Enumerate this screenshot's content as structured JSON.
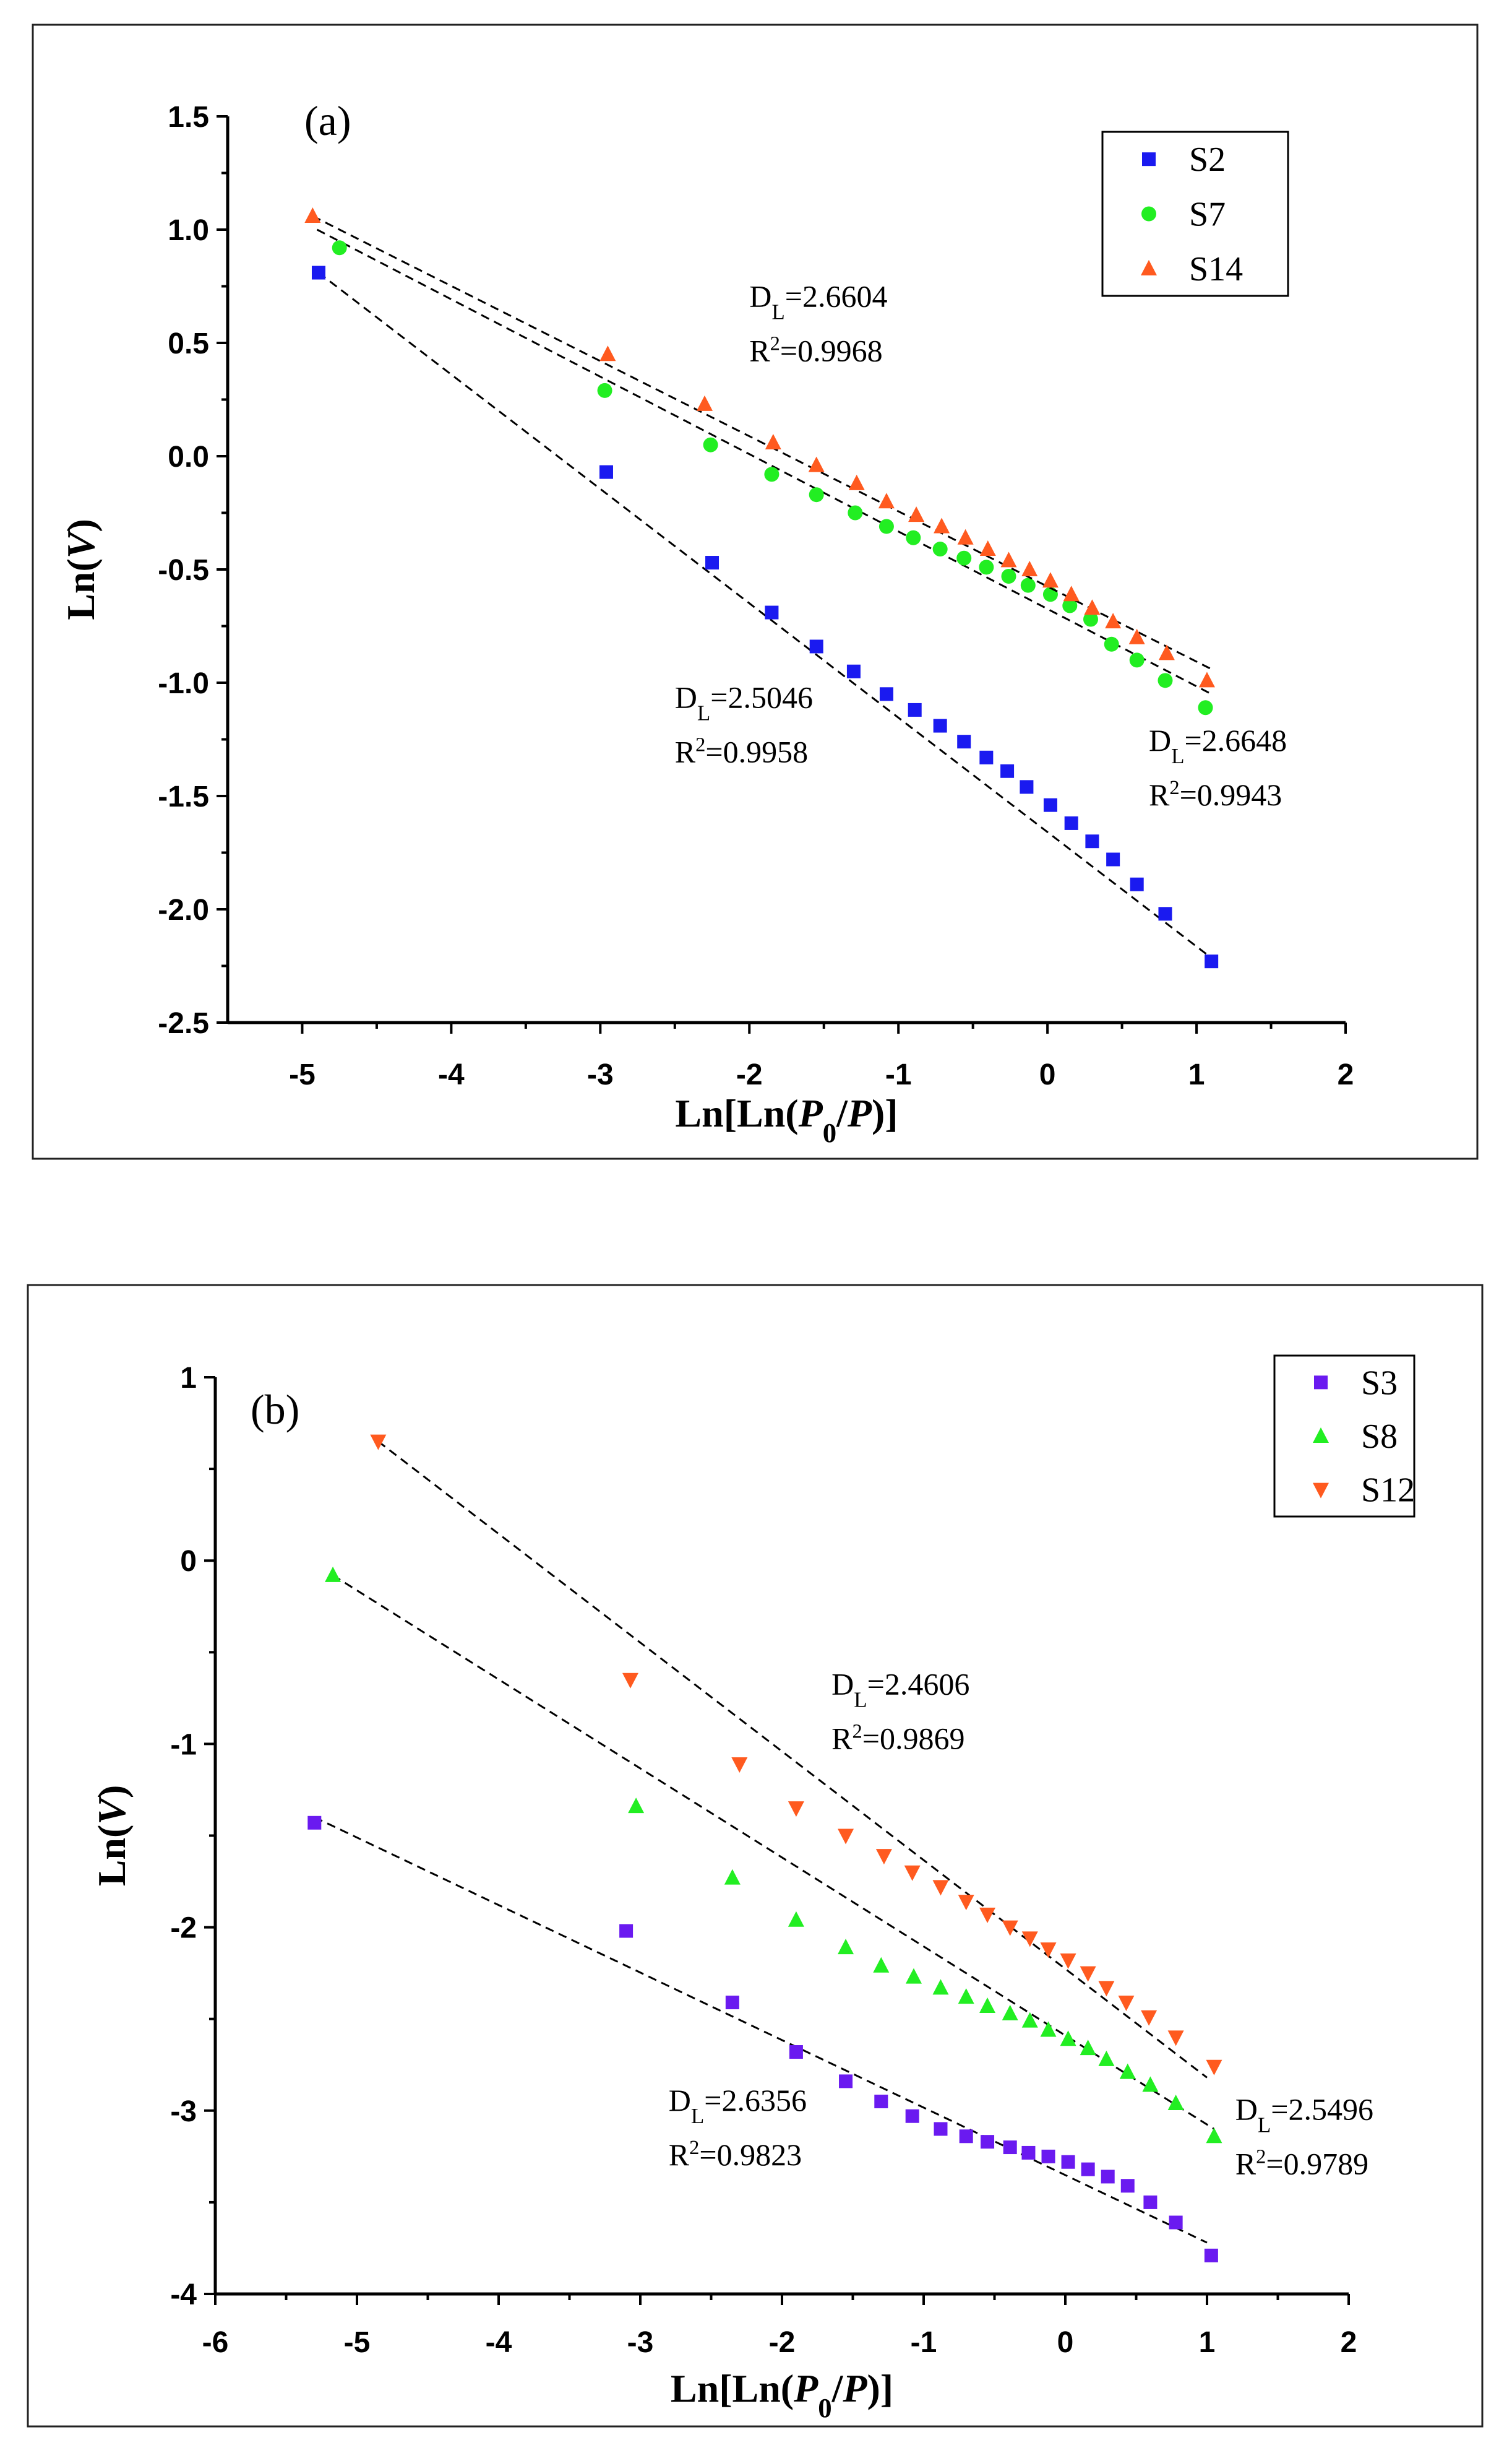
{
  "chart_data": [
    {
      "type": "scatter",
      "panel_label": "(a)",
      "xlabel_parts": [
        "Ln[Ln(",
        "P",
        "0",
        "/",
        "P",
        ")]"
      ],
      "ylabel_parts": [
        "Ln(",
        "V",
        ")"
      ],
      "xlim": [
        -5.5,
        2
      ],
      "ylim": [
        -2.5,
        1.5
      ],
      "xticks": [
        -5,
        -4,
        -3,
        -2,
        -1,
        0,
        1,
        2
      ],
      "yticks": [
        1.5,
        1.0,
        0.5,
        0.0,
        -0.5,
        -1.0,
        -1.5,
        -2.0,
        -2.5
      ],
      "ytick_labels": [
        "1.5",
        "1.0",
        "0.5",
        "0.0",
        "-0.5",
        "-1.0",
        "-1.5",
        "-2.0",
        "-2.5"
      ],
      "xtick_labels": [
        "-5",
        "-4",
        "-3",
        "-2",
        "-1",
        "0",
        "1",
        "2"
      ],
      "legend": {
        "position": "top-right",
        "entries": [
          "S2",
          "S7",
          "S14"
        ]
      },
      "series": [
        {
          "name": "S2",
          "marker": "square",
          "color": "#1a1af0",
          "x": [
            -4.89,
            -2.96,
            -2.25,
            -1.85,
            -1.55,
            -1.3,
            -1.08,
            -0.89,
            -0.72,
            -0.56,
            -0.41,
            -0.27,
            -0.14,
            0.02,
            0.16,
            0.3,
            0.44,
            0.6,
            0.79,
            1.1
          ],
          "y": [
            0.81,
            -0.07,
            -0.47,
            -0.69,
            -0.84,
            -0.95,
            -1.05,
            -1.12,
            -1.19,
            -1.26,
            -1.33,
            -1.39,
            -1.46,
            -1.54,
            -1.62,
            -1.7,
            -1.78,
            -1.89,
            -2.02,
            -2.23
          ],
          "fit": {
            "x": [
              -4.89,
              1.15
            ],
            "y": [
              0.81,
              -2.24
            ]
          }
        },
        {
          "name": "S7",
          "marker": "circle",
          "color": "#22ee22",
          "x": [
            -4.75,
            -2.97,
            -2.26,
            -1.85,
            -1.55,
            -1.29,
            -1.08,
            -0.9,
            -0.72,
            -0.56,
            -0.41,
            -0.26,
            -0.13,
            0.02,
            0.15,
            0.29,
            0.43,
            0.6,
            0.79,
            1.06
          ],
          "y": [
            0.92,
            0.29,
            0.05,
            -0.08,
            -0.17,
            -0.25,
            -0.31,
            -0.36,
            -0.41,
            -0.45,
            -0.49,
            -0.53,
            -0.57,
            -0.61,
            -0.66,
            -0.72,
            -0.83,
            -0.9,
            -0.99,
            -1.11
          ],
          "fit": {
            "x": [
              -4.9,
              1.1
            ],
            "y": [
              1.0,
              -1.05
            ]
          }
        },
        {
          "name": "S14",
          "marker": "triangle-up",
          "color": "#ff5a1f",
          "x": [
            -4.93,
            -2.95,
            -2.3,
            -1.84,
            -1.55,
            -1.28,
            -1.08,
            -0.88,
            -0.71,
            -0.55,
            -0.4,
            -0.26,
            -0.12,
            0.02,
            0.16,
            0.3,
            0.44,
            0.6,
            0.8,
            1.07
          ],
          "y": [
            1.06,
            0.45,
            0.23,
            0.06,
            -0.04,
            -0.12,
            -0.2,
            -0.26,
            -0.31,
            -0.36,
            -0.41,
            -0.46,
            -0.5,
            -0.55,
            -0.61,
            -0.67,
            -0.73,
            -0.8,
            -0.87,
            -0.99
          ],
          "fit": {
            "x": [
              -4.93,
              1.1
            ],
            "y": [
              1.06,
              -0.94
            ]
          }
        }
      ],
      "annotations": [
        {
          "label": "D",
          "sub": "L",
          "value": "=2.6604",
          "r2": "=0.9968",
          "x": -2.0,
          "y": 0.66
        },
        {
          "label": "D",
          "sub": "L",
          "value": "=2.5046",
          "r2": "=0.9958",
          "x": -2.5,
          "y": -1.11
        },
        {
          "label": "D",
          "sub": "L",
          "value": "=2.6648",
          "r2": "=0.9943",
          "x": 0.68,
          "y": -1.3
        }
      ]
    },
    {
      "type": "scatter",
      "panel_label": "(b)",
      "xlabel_parts": [
        "Ln[Ln(",
        "P",
        "0",
        "/",
        "P",
        ")]"
      ],
      "ylabel_parts": [
        "Ln(",
        "V",
        ")"
      ],
      "xlim": [
        -6,
        2
      ],
      "ylim": [
        -4,
        1
      ],
      "xticks": [
        -6,
        -5,
        -4,
        -3,
        -2,
        -1,
        0,
        1,
        2
      ],
      "yticks": [
        1,
        0,
        -1,
        -2,
        -3,
        -4
      ],
      "ytick_labels": [
        "1",
        "0",
        "-1",
        "-2",
        "-3",
        "-4"
      ],
      "xtick_labels": [
        "-6",
        "-5",
        "-4",
        "-3",
        "-2",
        "-1",
        "0",
        "1",
        "2"
      ],
      "legend": {
        "position": "top-right",
        "entries": [
          "S3",
          "S8",
          "S12"
        ]
      },
      "series": [
        {
          "name": "S3",
          "marker": "square",
          "color": "#6a1af0",
          "x": [
            -5.3,
            -3.1,
            -2.35,
            -1.9,
            -1.55,
            -1.3,
            -1.08,
            -0.88,
            -0.7,
            -0.55,
            -0.39,
            -0.26,
            -0.12,
            0.02,
            0.16,
            0.3,
            0.44,
            0.6,
            0.78,
            1.03
          ],
          "y": [
            -1.43,
            -2.02,
            -2.41,
            -2.68,
            -2.84,
            -2.95,
            -3.03,
            -3.1,
            -3.14,
            -3.17,
            -3.2,
            -3.23,
            -3.25,
            -3.28,
            -3.32,
            -3.36,
            -3.41,
            -3.5,
            -3.61,
            -3.79
          ],
          "fit": {
            "x": [
              -5.3,
              1.0
            ],
            "y": [
              -1.4,
              -3.72
            ]
          }
        },
        {
          "name": "S8",
          "marker": "triangle-up",
          "color": "#22ee22",
          "x": [
            -5.17,
            -3.03,
            -2.35,
            -1.9,
            -1.55,
            -1.3,
            -1.07,
            -0.88,
            -0.7,
            -0.55,
            -0.39,
            -0.25,
            -0.12,
            0.02,
            0.16,
            0.29,
            0.44,
            0.6,
            0.78,
            1.05
          ],
          "y": [
            -0.08,
            -1.34,
            -1.73,
            -1.96,
            -2.11,
            -2.21,
            -2.27,
            -2.33,
            -2.38,
            -2.43,
            -2.47,
            -2.51,
            -2.56,
            -2.61,
            -2.66,
            -2.72,
            -2.79,
            -2.86,
            -2.96,
            -3.14
          ],
          "fit": {
            "x": [
              -5.17,
              1.05
            ],
            "y": [
              -0.08,
              -3.1
            ]
          }
        },
        {
          "name": "S12",
          "marker": "triangle-down",
          "color": "#ff5a1f",
          "x": [
            -4.85,
            -3.07,
            -2.3,
            -1.9,
            -1.55,
            -1.28,
            -1.08,
            -0.88,
            -0.7,
            -0.55,
            -0.39,
            -0.25,
            -0.12,
            0.02,
            0.16,
            0.29,
            0.43,
            0.59,
            0.78,
            1.05
          ],
          "y": [
            0.65,
            -0.65,
            -1.11,
            -1.35,
            -1.5,
            -1.61,
            -1.7,
            -1.78,
            -1.86,
            -1.93,
            -2.0,
            -2.06,
            -2.12,
            -2.18,
            -2.25,
            -2.33,
            -2.41,
            -2.49,
            -2.6,
            -2.76
          ],
          "fit": {
            "x": [
              -4.85,
              1.0
            ],
            "y": [
              0.65,
              -2.82
            ]
          }
        }
      ],
      "annotations": [
        {
          "label": "D",
          "sub": "L",
          "value": "=2.4606",
          "r2": "=0.9869",
          "x": -1.65,
          "y": -0.73
        },
        {
          "label": "D",
          "sub": "L",
          "value": "=2.6356",
          "r2": "=0.9823",
          "x": -2.8,
          "y": -3.0
        },
        {
          "label": "D",
          "sub": "L",
          "value": "=2.5496",
          "r2": "=0.9789",
          "x": 1.2,
          "y": -3.05
        }
      ]
    }
  ]
}
